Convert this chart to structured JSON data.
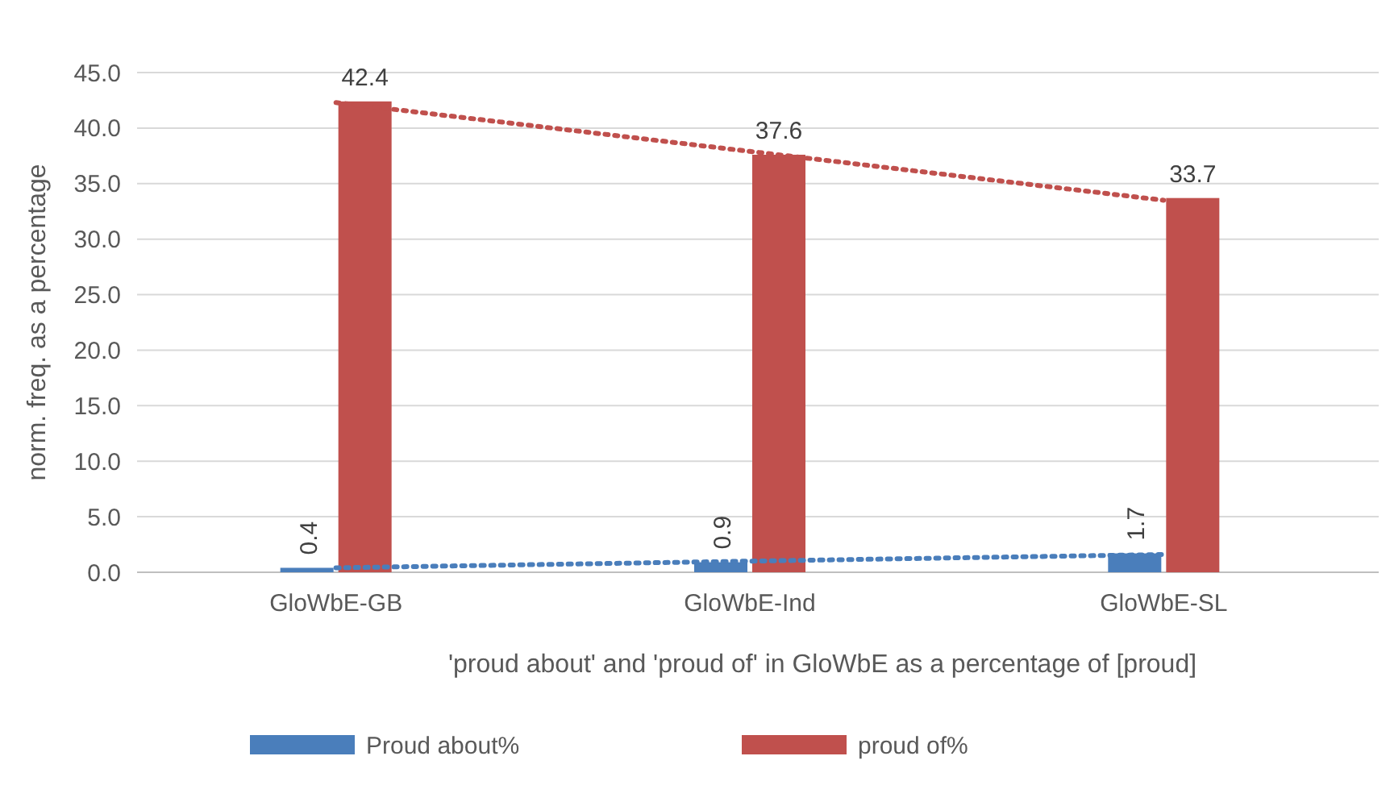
{
  "chart_data": {
    "type": "bar",
    "categories": [
      "GloWbE-GB",
      "GloWbE-Ind",
      "GloWbE-SL"
    ],
    "series": [
      {
        "name": "Proud about%",
        "color": "#4a7ebb",
        "values": [
          0.4,
          0.9,
          1.7
        ],
        "value_labels": [
          "0.4",
          "0.9",
          "1.7"
        ]
      },
      {
        "name": "proud of%",
        "color": "#c0504d",
        "values": [
          42.4,
          37.6,
          33.7
        ],
        "value_labels": [
          "42.4",
          "37.6",
          "33.7"
        ]
      },
      {
        "type": "line",
        "color": "#4a7ebb",
        "values": [
          0.4,
          1.0,
          1.6
        ],
        "line_style": "dotted"
      },
      {
        "type": "line",
        "color": "#c0504d",
        "values": [
          42.3,
          37.9,
          33.5
        ],
        "line_style": "dotted"
      }
    ],
    "ylim": [
      0,
      45
    ],
    "yticks": [
      {
        "value": 0,
        "label": "0.0"
      },
      {
        "value": 5,
        "label": "5.0"
      },
      {
        "value": 10,
        "label": "10.0"
      },
      {
        "value": 15,
        "label": "15.0"
      },
      {
        "value": 20,
        "label": "20.0"
      },
      {
        "value": 25,
        "label": "25.0"
      },
      {
        "value": 30,
        "label": "30.0"
      },
      {
        "value": 35,
        "label": "35.0"
      },
      {
        "value": 40,
        "label": "40.0"
      },
      {
        "value": 45,
        "label": "45.0"
      }
    ],
    "ylabel": "norm. freq. as a percentage",
    "xlabel": "'proud about' and 'proud of' in GloWbE as a percentage of [proud]",
    "grid": "y",
    "legend": "bottom"
  }
}
